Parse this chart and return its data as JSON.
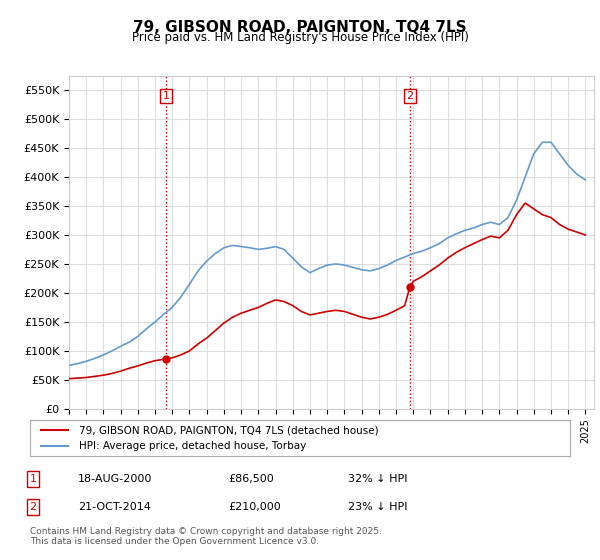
{
  "title": "79, GIBSON ROAD, PAIGNTON, TQ4 7LS",
  "subtitle": "Price paid vs. HM Land Registry's House Price Index (HPI)",
  "ylabel_ticks": [
    "£0",
    "£50K",
    "£100K",
    "£150K",
    "£200K",
    "£250K",
    "£300K",
    "£350K",
    "£400K",
    "£450K",
    "£500K",
    "£550K"
  ],
  "ytick_vals": [
    0,
    50000,
    100000,
    150000,
    200000,
    250000,
    300000,
    350000,
    400000,
    450000,
    500000,
    550000
  ],
  "ylim": [
    0,
    575000
  ],
  "xlim_start": 1995.0,
  "xlim_end": 2025.5,
  "marker1_x": 2000.633,
  "marker1_y": 86500,
  "marker1_label": "1",
  "marker2_x": 2014.803,
  "marker2_y": 210000,
  "marker2_label": "2",
  "marker1_color": "#cc0000",
  "marker2_color": "#cc0000",
  "vline_color": "#cc0000",
  "vline_style": ":",
  "hpi_color": "#6699cc",
  "sale_color": "#cc0000",
  "legend_sale_label": "79, GIBSON ROAD, PAIGNTON, TQ4 7LS (detached house)",
  "legend_hpi_label": "HPI: Average price, detached house, Torbay",
  "table_rows": [
    {
      "num": "1",
      "date": "18-AUG-2000",
      "price": "£86,500",
      "change": "32% ↓ HPI"
    },
    {
      "num": "2",
      "date": "21-OCT-2014",
      "price": "£210,000",
      "change": "23% ↓ HPI"
    }
  ],
  "footer": "Contains HM Land Registry data © Crown copyright and database right 2025.\nThis data is licensed under the Open Government Licence v3.0.",
  "background_color": "#ffffff",
  "grid_color": "#dddddd"
}
